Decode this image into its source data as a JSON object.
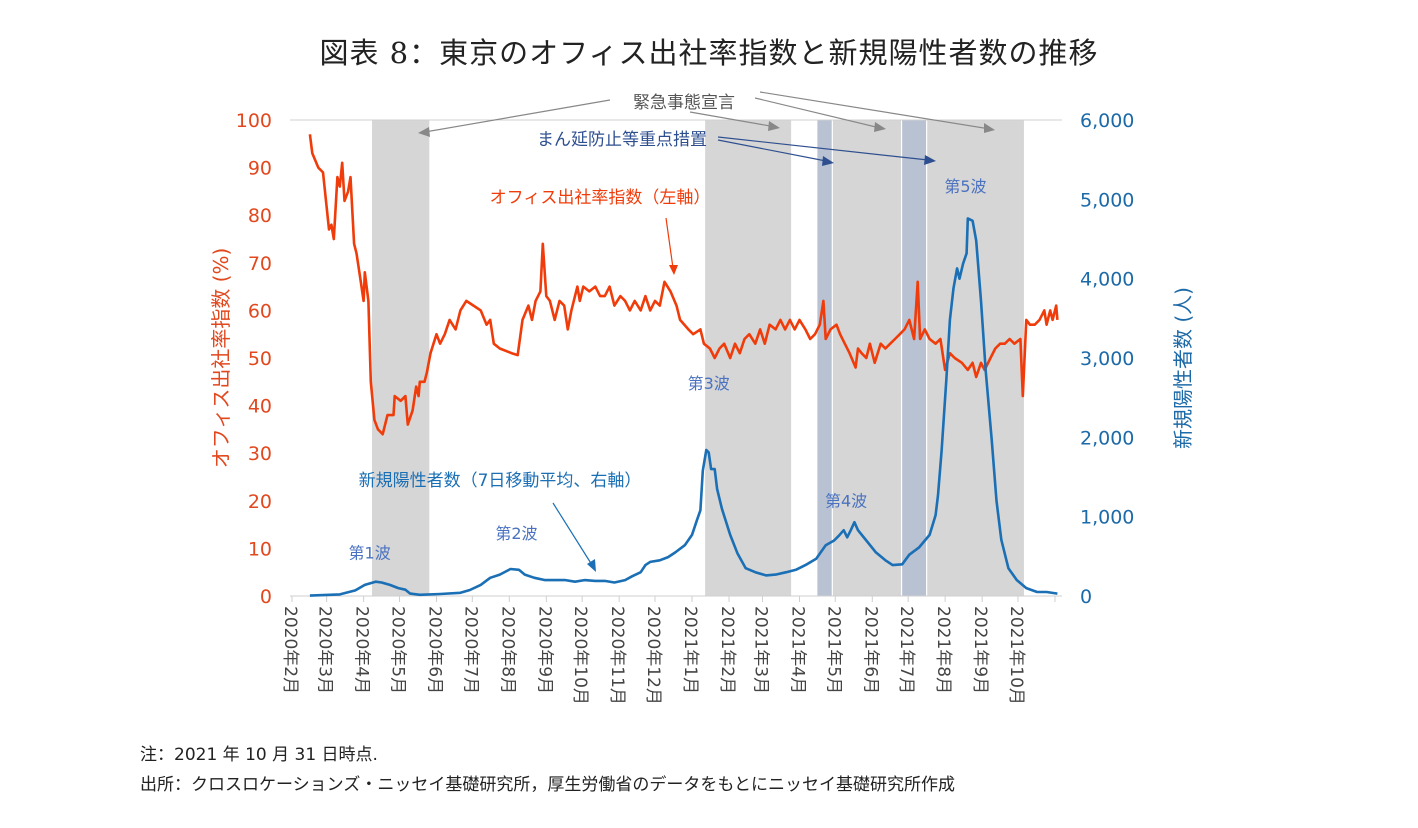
{
  "title": "図表 8：東京のオフィス出社率指数と新規陽性者数の推移",
  "notes": {
    "note": "注：2021 年 10 月 31 日時点.",
    "source": "出所：クロスロケーションズ・ニッセイ基礎研究所，厚生労働省のデータをもとにニッセイ基礎研究所作成"
  },
  "colors": {
    "office": "#f03c0a",
    "cases": "#1a6fb5",
    "left_axis": "#e2481e",
    "right_axis": "#1d6aa8",
    "emergency": "#d6d6d6",
    "priority": "#b9c2d2",
    "annotation_gray": "#666666",
    "annotation_blue": "#2e4f8f",
    "wave_label": "#4a72c0"
  },
  "chart_data": {
    "type": "line",
    "title": "図表 8：東京のオフィス出社率指数と新規陽性者数の推移",
    "x_unit": "days since 2020-02-01",
    "xlim": [
      0,
      640
    ],
    "x_ticks": [
      {
        "day": 0,
        "label": "2020年2月"
      },
      {
        "day": 29,
        "label": "2020年3月"
      },
      {
        "day": 60,
        "label": "2020年4月"
      },
      {
        "day": 90,
        "label": "2020年5月"
      },
      {
        "day": 121,
        "label": "2020年6月"
      },
      {
        "day": 151,
        "label": "2020年7月"
      },
      {
        "day": 182,
        "label": "2020年8月"
      },
      {
        "day": 213,
        "label": "2020年9月"
      },
      {
        "day": 243,
        "label": "2020年10月"
      },
      {
        "day": 274,
        "label": "2020年11月"
      },
      {
        "day": 304,
        "label": "2020年12月"
      },
      {
        "day": 335,
        "label": "2021年1月"
      },
      {
        "day": 366,
        "label": "2021年2月"
      },
      {
        "day": 394,
        "label": "2021年3月"
      },
      {
        "day": 425,
        "label": "2021年4月"
      },
      {
        "day": 455,
        "label": "2021年5月"
      },
      {
        "day": 486,
        "label": "2021年6月"
      },
      {
        "day": 516,
        "label": "2021年7月"
      },
      {
        "day": 547,
        "label": "2021年8月"
      },
      {
        "day": 578,
        "label": "2021年9月"
      },
      {
        "day": 608,
        "label": "2021年10月"
      },
      {
        "day": 639,
        "label": ""
      }
    ],
    "y_left": {
      "label": "オフィス出社率指数 (%)",
      "ylim": [
        0,
        100
      ],
      "ticks": [
        "0",
        "10",
        "20",
        "30",
        "40",
        "50",
        "60",
        "70",
        "80",
        "90",
        "100"
      ]
    },
    "y_right": {
      "label": "新規陽性者数 (人)",
      "ylim": [
        0,
        6000
      ],
      "ticks": [
        "0",
        "1,000",
        "2,000",
        "3,000",
        "4,000",
        "5,000",
        "6,000"
      ]
    },
    "periods": [
      {
        "type": "emergency",
        "start": 67,
        "end": 115
      },
      {
        "type": "emergency",
        "start": 346,
        "end": 418
      },
      {
        "type": "priority",
        "start": 440,
        "end": 452
      },
      {
        "type": "emergency",
        "start": 453,
        "end": 510
      },
      {
        "type": "priority",
        "start": 511,
        "end": 531
      },
      {
        "type": "emergency",
        "start": 532,
        "end": 613
      }
    ],
    "series": [
      {
        "name": "オフィス出社率指数（左軸）",
        "axis": "left",
        "points": [
          [
            15,
            97
          ],
          [
            17,
            93
          ],
          [
            22,
            90
          ],
          [
            26,
            89
          ],
          [
            31,
            77
          ],
          [
            33,
            78
          ],
          [
            35,
            75
          ],
          [
            38,
            88
          ],
          [
            40,
            86
          ],
          [
            42,
            91
          ],
          [
            44,
            83
          ],
          [
            47,
            85
          ],
          [
            49,
            88
          ],
          [
            52,
            74
          ],
          [
            54,
            72
          ],
          [
            57,
            67
          ],
          [
            60,
            62
          ],
          [
            61,
            68
          ],
          [
            64,
            62
          ],
          [
            66,
            45
          ],
          [
            69,
            37
          ],
          [
            72,
            35
          ],
          [
            76,
            34
          ],
          [
            80,
            38
          ],
          [
            85,
            38
          ],
          [
            86,
            42
          ],
          [
            91,
            41
          ],
          [
            95,
            42
          ],
          [
            97,
            36
          ],
          [
            101,
            39
          ],
          [
            104,
            44
          ],
          [
            106,
            42
          ],
          [
            107,
            45
          ],
          [
            111,
            45
          ],
          [
            113,
            47
          ],
          [
            116,
            51
          ],
          [
            121,
            55
          ],
          [
            124,
            53
          ],
          [
            128,
            55
          ],
          [
            132,
            58
          ],
          [
            137,
            56
          ],
          [
            141,
            60
          ],
          [
            146,
            62
          ],
          [
            152,
            61
          ],
          [
            158,
            60
          ],
          [
            163,
            57
          ],
          [
            166,
            58
          ],
          [
            169,
            53
          ],
          [
            174,
            52
          ],
          [
            184,
            51
          ],
          [
            189,
            50.6
          ],
          [
            193,
            58
          ],
          [
            198,
            61
          ],
          [
            201,
            58
          ],
          [
            204,
            62
          ],
          [
            208,
            64
          ],
          [
            210,
            74
          ],
          [
            213,
            63
          ],
          [
            216,
            62
          ],
          [
            220,
            58
          ],
          [
            224,
            62
          ],
          [
            228,
            61
          ],
          [
            231,
            56
          ],
          [
            234,
            60
          ],
          [
            239,
            65
          ],
          [
            241,
            62
          ],
          [
            244,
            65
          ],
          [
            249,
            64
          ],
          [
            254,
            65
          ],
          [
            258,
            63
          ],
          [
            262,
            63
          ],
          [
            266,
            65
          ],
          [
            270,
            61
          ],
          [
            275,
            63
          ],
          [
            279,
            62
          ],
          [
            283,
            60
          ],
          [
            287,
            62
          ],
          [
            292,
            60
          ],
          [
            296,
            63
          ],
          [
            300,
            60
          ],
          [
            304,
            62
          ],
          [
            308,
            61
          ],
          [
            312,
            66
          ],
          [
            317,
            64
          ],
          [
            322,
            61
          ],
          [
            325,
            58
          ],
          [
            332,
            56
          ],
          [
            336,
            55
          ],
          [
            342,
            56
          ],
          [
            345,
            53
          ],
          [
            350,
            52
          ],
          [
            354,
            50
          ],
          [
            358,
            52
          ],
          [
            362,
            53
          ],
          [
            367,
            50
          ],
          [
            371,
            53
          ],
          [
            375,
            51
          ],
          [
            379,
            54
          ],
          [
            383,
            55
          ],
          [
            388,
            53
          ],
          [
            392,
            56
          ],
          [
            396,
            53
          ],
          [
            400,
            57
          ],
          [
            405,
            56
          ],
          [
            409,
            58
          ],
          [
            413,
            56
          ],
          [
            417,
            58
          ],
          [
            421,
            56
          ],
          [
            425,
            58
          ],
          [
            430,
            56
          ],
          [
            434,
            54
          ],
          [
            438,
            55
          ],
          [
            442,
            57
          ],
          [
            445,
            62
          ],
          [
            447,
            54
          ],
          [
            451,
            56
          ],
          [
            456,
            57
          ],
          [
            459,
            55
          ],
          [
            463,
            53
          ],
          [
            467,
            51
          ],
          [
            472,
            48
          ],
          [
            474,
            52
          ],
          [
            477,
            51
          ],
          [
            481,
            50
          ],
          [
            484,
            53
          ],
          [
            488,
            49
          ],
          [
            493,
            53
          ],
          [
            497,
            52
          ],
          [
            501,
            53
          ],
          [
            505,
            54
          ],
          [
            509,
            55
          ],
          [
            513,
            56
          ],
          [
            517,
            58
          ],
          [
            521,
            54
          ],
          [
            524,
            66
          ],
          [
            526,
            54
          ],
          [
            530,
            56
          ],
          [
            534,
            54
          ],
          [
            539,
            53
          ],
          [
            543,
            54
          ],
          [
            547,
            47.5
          ],
          [
            551,
            51
          ],
          [
            555,
            50
          ],
          [
            561,
            49
          ],
          [
            566,
            47.5
          ],
          [
            570,
            49
          ],
          [
            573,
            46
          ],
          [
            577,
            49
          ],
          [
            580,
            47.5
          ],
          [
            585,
            50
          ],
          [
            589,
            52
          ],
          [
            593,
            53
          ],
          [
            597,
            53
          ],
          [
            601,
            54
          ],
          [
            605,
            53
          ],
          [
            610,
            54
          ],
          [
            612,
            42
          ],
          [
            615,
            58
          ],
          [
            618,
            57
          ],
          [
            622,
            57
          ],
          [
            626,
            58
          ],
          [
            630,
            60
          ],
          [
            632,
            57
          ],
          [
            635,
            60
          ],
          [
            637,
            58
          ],
          [
            640,
            61
          ],
          [
            641,
            58
          ]
        ]
      },
      {
        "name": "新規陽性者数（7日移動平均、右軸）",
        "axis": "right",
        "points": [
          [
            15,
            5
          ],
          [
            40,
            20
          ],
          [
            53,
            70
          ],
          [
            61,
            140
          ],
          [
            70,
            180
          ],
          [
            75,
            170
          ],
          [
            82,
            140
          ],
          [
            89,
            100
          ],
          [
            95,
            80
          ],
          [
            99,
            30
          ],
          [
            107,
            15
          ],
          [
            124,
            25
          ],
          [
            141,
            40
          ],
          [
            149,
            75
          ],
          [
            158,
            140
          ],
          [
            166,
            230
          ],
          [
            174,
            270
          ],
          [
            183,
            340
          ],
          [
            190,
            330
          ],
          [
            195,
            270
          ],
          [
            203,
            230
          ],
          [
            212,
            200
          ],
          [
            220,
            200
          ],
          [
            229,
            200
          ],
          [
            237,
            180
          ],
          [
            245,
            200
          ],
          [
            254,
            190
          ],
          [
            262,
            190
          ],
          [
            270,
            170
          ],
          [
            279,
            200
          ],
          [
            285,
            250
          ],
          [
            292,
            300
          ],
          [
            296,
            390
          ],
          [
            300,
            430
          ],
          [
            308,
            450
          ],
          [
            315,
            490
          ],
          [
            321,
            550
          ],
          [
            329,
            640
          ],
          [
            335,
            770
          ],
          [
            339,
            950
          ],
          [
            342,
            1080
          ],
          [
            344,
            1580
          ],
          [
            347,
            1840
          ],
          [
            349,
            1810
          ],
          [
            351,
            1600
          ],
          [
            354,
            1600
          ],
          [
            356,
            1350
          ],
          [
            360,
            1100
          ],
          [
            367,
            770
          ],
          [
            373,
            540
          ],
          [
            380,
            350
          ],
          [
            388,
            300
          ],
          [
            397,
            260
          ],
          [
            405,
            270
          ],
          [
            414,
            300
          ],
          [
            422,
            330
          ],
          [
            430,
            390
          ],
          [
            439,
            470
          ],
          [
            447,
            640
          ],
          [
            454,
            700
          ],
          [
            458,
            760
          ],
          [
            462,
            830
          ],
          [
            465,
            740
          ],
          [
            468,
            830
          ],
          [
            471,
            930
          ],
          [
            474,
            830
          ],
          [
            481,
            700
          ],
          [
            489,
            550
          ],
          [
            497,
            450
          ],
          [
            503,
            390
          ],
          [
            511,
            400
          ],
          [
            517,
            520
          ],
          [
            525,
            610
          ],
          [
            534,
            770
          ],
          [
            539,
            1020
          ],
          [
            541,
            1270
          ],
          [
            544,
            1830
          ],
          [
            548,
            2720
          ],
          [
            551,
            3480
          ],
          [
            554,
            3880
          ],
          [
            557,
            4130
          ],
          [
            559,
            4000
          ],
          [
            562,
            4190
          ],
          [
            565,
            4320
          ],
          [
            566,
            4760
          ],
          [
            570,
            4730
          ],
          [
            573,
            4480
          ],
          [
            577,
            3720
          ],
          [
            581,
            2840
          ],
          [
            586,
            1970
          ],
          [
            590,
            1200
          ],
          [
            594,
            710
          ],
          [
            600,
            350
          ],
          [
            607,
            200
          ],
          [
            615,
            100
          ],
          [
            624,
            50
          ],
          [
            632,
            50
          ],
          [
            641,
            30
          ]
        ]
      }
    ],
    "annotations": {
      "emergency": "緊急事態宣言",
      "priority": "まん延防止等重点措置",
      "office_label": "オフィス出社率指数（左軸）",
      "cases_label": "新規陽性者数（7日移動平均、右軸）",
      "waves": [
        {
          "label": "第1波",
          "day": 65,
          "value": 470
        },
        {
          "label": "第2波",
          "day": 188,
          "value": 720
        },
        {
          "label": "第3波",
          "day": 349,
          "value": 2610
        },
        {
          "label": "第4波",
          "day": 464,
          "value": 1130
        },
        {
          "label": "第5波",
          "day": 564,
          "value": 5090
        }
      ]
    }
  }
}
